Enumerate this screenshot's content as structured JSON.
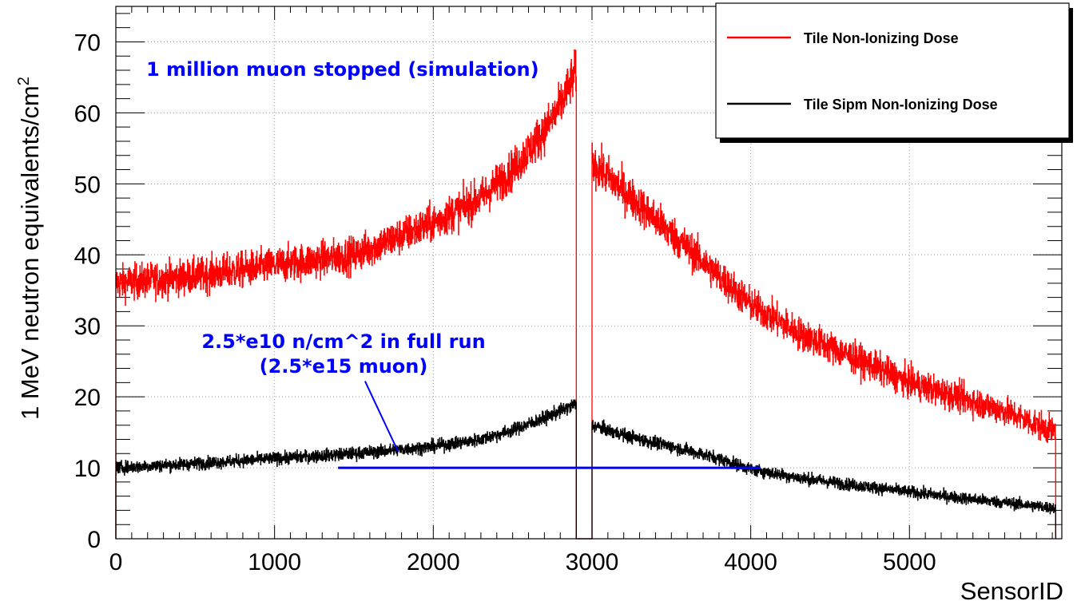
{
  "chart_data": {
    "type": "line",
    "title": "",
    "xlabel": "SensorID",
    "ylabel": "1 MeV neutron equivalents/cm",
    "ylabel_superscript": "2",
    "xlim": [
      0,
      5960
    ],
    "ylim": [
      0,
      75
    ],
    "x_ticks": [
      0,
      1000,
      2000,
      3000,
      4000,
      5000
    ],
    "x_tick_labels": [
      "0",
      "1000",
      "2000",
      "3000",
      "4000",
      "5000"
    ],
    "y_ticks": [
      0,
      10,
      20,
      30,
      40,
      50,
      60,
      70
    ],
    "y_tick_labels": [
      "0",
      "10",
      "20",
      "30",
      "40",
      "50",
      "60",
      "70"
    ],
    "grid": true,
    "legend_position": "top-right",
    "gap": {
      "from": 2900,
      "to": 3000
    },
    "series": [
      {
        "name": "Tile Non-Ionizing Dose",
        "color": "#ff0000",
        "noise_amplitude": 2.6,
        "x": [
          0,
          500,
          1000,
          1500,
          2000,
          2300,
          2500,
          2700,
          2800,
          2900,
          3000,
          3100,
          3300,
          3500,
          3800,
          4000,
          4300,
          4600,
          5000,
          5300,
          5600,
          5920
        ],
        "y": [
          36,
          37,
          38.5,
          40,
          44.5,
          48,
          52,
          57.5,
          61,
          66,
          53,
          51,
          47,
          43,
          37,
          33,
          29,
          26,
          22,
          20,
          18,
          15
        ]
      },
      {
        "name": "Tile Sipm Non-Ionizing Dose",
        "color": "#000000",
        "noise_amplitude": 1.2,
        "x": [
          0,
          500,
          1000,
          1500,
          2000,
          2300,
          2500,
          2700,
          2800,
          2900,
          3000,
          3100,
          3300,
          3500,
          3800,
          4000,
          4300,
          4600,
          5000,
          5300,
          5600,
          5920
        ],
        "y": [
          10,
          10.6,
          11.3,
          12,
          13,
          14,
          15.3,
          17,
          18,
          19,
          16,
          15.3,
          14,
          13,
          11.3,
          9.8,
          8.6,
          7.7,
          6.6,
          5.8,
          5.1,
          4.3
        ]
      }
    ],
    "reference_line": {
      "x": [
        1400,
        4060
      ],
      "y": 10,
      "color": "#0000ff"
    },
    "annotations": [
      {
        "text": "1 million muon stopped (simulation)",
        "x": 170,
        "y": 65.5,
        "color": "#0000ff"
      },
      {
        "lines": [
          "2.5*e10 n/cm^2 in full run",
          "(2.5*e15 muon)"
        ],
        "x": 1580,
        "y": 27.5,
        "color": "#0000ff",
        "arrow_to": {
          "x": 1780,
          "y": 12.2
        }
      }
    ]
  },
  "annotation_1": "1 million muon stopped (simulation)",
  "annotation_2_line1": "2.5*e10 n/cm^2 in full run",
  "annotation_2_line2": "(2.5*e15 muon)",
  "legend": {
    "item1": "Tile Non-Ionizing Dose",
    "item2": "Tile Sipm Non-Ionizing Dose"
  }
}
